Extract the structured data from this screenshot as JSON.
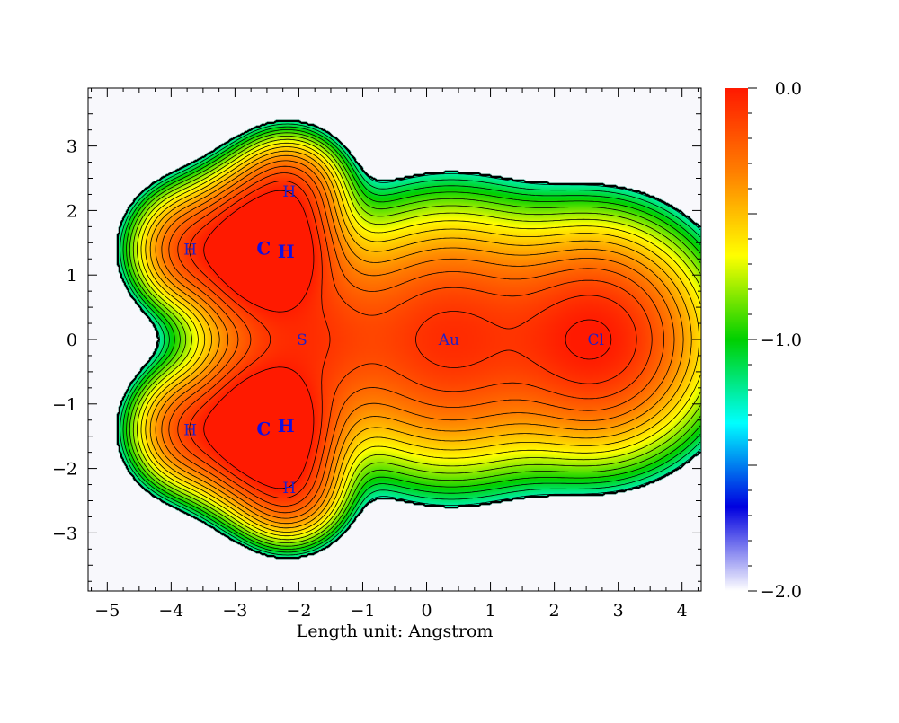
{
  "chart_data": {
    "type": "heatmap",
    "title": "",
    "xlabel": "Length unit: Angstrom",
    "ylabel": "",
    "xlim": [
      -5.3,
      4.3
    ],
    "ylim": [
      -3.9,
      3.9
    ],
    "x_ticks": [
      -5,
      -4,
      -3,
      -2,
      -1,
      0,
      1,
      2,
      3,
      4
    ],
    "x_tick_labels": [
      "−5",
      "−4",
      "−3",
      "−2",
      "−1",
      "0",
      "1",
      "2",
      "3",
      "4"
    ],
    "y_ticks": [
      -3,
      -2,
      -1,
      0,
      1,
      2,
      3
    ],
    "y_tick_labels": [
      "−3",
      "−2",
      "−1",
      "0",
      "1",
      "2",
      "3"
    ],
    "colorbar": {
      "min": -2.0,
      "max": 0.0,
      "ticks": [
        0.0,
        -1.0,
        -2.0
      ],
      "tick_labels": [
        "0.0",
        "−1.0",
        "−2.0"
      ],
      "colors": [
        "#ff1a00",
        "#ff8000",
        "#ffff00",
        "#00d000",
        "#00ffff",
        "#0000e0",
        "#ffffff"
      ]
    },
    "cutoff_level": -1.45,
    "background_color": "#f8f8fc",
    "atoms": [
      {
        "label": "C",
        "x": -2.55,
        "y": 1.4,
        "bold": true,
        "weight": 2.2,
        "sigma": 0.55
      },
      {
        "label": "H",
        "x": -2.2,
        "y": 1.35,
        "bold": true,
        "weight": 0.0,
        "sigma": 0.3
      },
      {
        "label": "H",
        "x": -3.7,
        "y": 1.4,
        "bold": false,
        "weight": 0.55,
        "sigma": 0.45
      },
      {
        "label": "H",
        "x": -2.15,
        "y": 2.3,
        "bold": false,
        "weight": 0.55,
        "sigma": 0.42
      },
      {
        "label": "C",
        "x": -2.55,
        "y": -1.4,
        "bold": true,
        "weight": 2.2,
        "sigma": 0.55
      },
      {
        "label": "H",
        "x": -2.2,
        "y": -1.35,
        "bold": true,
        "weight": 0.0,
        "sigma": 0.3
      },
      {
        "label": "H",
        "x": -3.7,
        "y": -1.4,
        "bold": false,
        "weight": 0.55,
        "sigma": 0.45
      },
      {
        "label": "H",
        "x": -2.15,
        "y": -2.3,
        "bold": false,
        "weight": 0.55,
        "sigma": 0.42
      },
      {
        "label": "S",
        "x": -1.95,
        "y": 0.0,
        "bold": false,
        "weight": 0.75,
        "sigma": 0.8
      },
      {
        "label": "Au",
        "x": 0.35,
        "y": 0.0,
        "bold": false,
        "weight": 0.85,
        "sigma": 0.95
      },
      {
        "label": "Cl",
        "x": 2.65,
        "y": 0.0,
        "bold": false,
        "weight": 1.05,
        "sigma": 0.85
      }
    ]
  }
}
